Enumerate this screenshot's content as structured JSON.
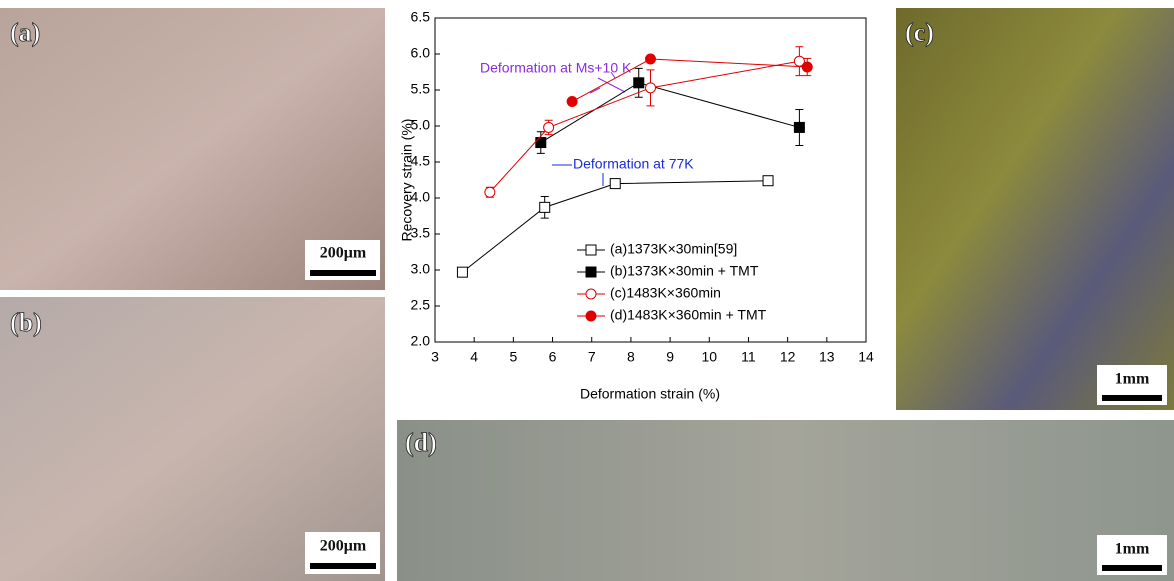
{
  "panels": [
    {
      "label": "(a)",
      "scale": "200μm"
    },
    {
      "label": "(b)",
      "scale": "200μm"
    },
    {
      "label": "(c)",
      "scale": "1mm"
    },
    {
      "label": "(d)",
      "scale": "1mm"
    }
  ],
  "chart_data": {
    "type": "line",
    "xlabel": "Deformation strain (%)",
    "ylabel": "Recovery strain (%)",
    "xlim": [
      3,
      14
    ],
    "xticks": [
      3,
      4,
      5,
      6,
      7,
      8,
      9,
      10,
      11,
      12,
      13,
      14
    ],
    "ylim": [
      2,
      6.5
    ],
    "yticks": [
      {
        "value": 2,
        "label": "2.0"
      },
      2.5,
      {
        "value": 3,
        "label": "3.0"
      },
      3.5,
      {
        "value": 4,
        "label": "4.0"
      },
      4.5,
      {
        "value": 5,
        "label": "5.0"
      },
      5.5,
      {
        "value": 6,
        "label": "6.0"
      },
      6.5
    ],
    "annotations": [
      "Deformation at Ms+10 K",
      "Deformation at 77K"
    ],
    "series": [
      {
        "name": "(a)1373K×30min[59]",
        "color": "#000000",
        "marker": "square",
        "filled": false,
        "x": [
          3.7,
          5.8,
          7.6,
          11.5
        ],
        "values": [
          2.97,
          3.87,
          4.2,
          4.24
        ],
        "errors": [
          0.05,
          0.15,
          0.05,
          0.05
        ]
      },
      {
        "name": "(b)1373K×30min + TMT",
        "color": "#000000",
        "marker": "square",
        "filled": true,
        "x": [
          5.7,
          8.2,
          12.3
        ],
        "values": [
          4.77,
          5.6,
          4.98
        ],
        "errors": [
          0.15,
          0.2,
          0.25
        ]
      },
      {
        "name": "(c)1483K×360min",
        "color": "#e00000",
        "marker": "circle",
        "filled": false,
        "x": [
          4.4,
          5.9,
          8.5,
          12.3
        ],
        "values": [
          4.08,
          4.98,
          5.53,
          5.9
        ],
        "errors": [
          0.07,
          0.1,
          0.25,
          0.2
        ]
      },
      {
        "name": "(d)1483K×360min + TMT",
        "color": "#e00000",
        "marker": "circle",
        "filled": true,
        "x": [
          6.5,
          8.5,
          12.5
        ],
        "values": [
          5.34,
          5.93,
          5.82
        ],
        "errors": [
          0,
          0.05,
          0.12
        ]
      }
    ]
  }
}
